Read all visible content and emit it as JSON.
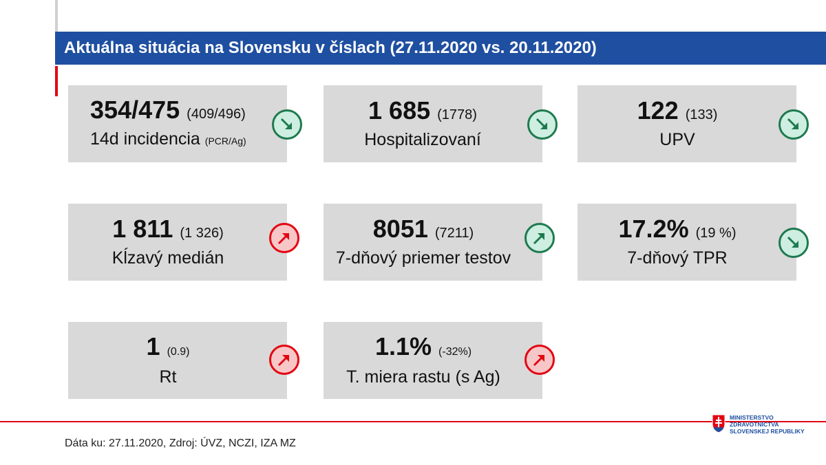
{
  "title": "Aktuálna situácia na Slovensku v číslach (27.11.2020 vs. 20.11.2020)",
  "cards": [
    {
      "value": "354/475",
      "prev": "(409/496)",
      "label": "14d incidencia",
      "label_sub": "(PCR/Ag)",
      "trend": "down",
      "trend_icon": "arrow-down-right-icon",
      "trend_color": "#1e7a4f"
    },
    {
      "value": "1 685",
      "prev": "(1778)",
      "label": "Hospitalizovaní",
      "label_sub": "",
      "trend": "down",
      "trend_icon": "arrow-down-right-icon",
      "trend_color": "#1e7a4f"
    },
    {
      "value": "122",
      "prev": "(133)",
      "label": "UPV",
      "label_sub": "",
      "trend": "down",
      "trend_icon": "arrow-down-right-icon",
      "trend_color": "#1e7a4f"
    },
    {
      "value": "1 811",
      "prev": "(1 326)",
      "label": "Kĺzavý medián",
      "label_sub": "",
      "trend": "up",
      "trend_icon": "arrow-up-right-icon",
      "trend_color": "#e30613"
    },
    {
      "value": "8051",
      "prev": "(7211)",
      "label": "7-dňový priemer testov",
      "label_sub": "",
      "trend": "up",
      "trend_icon": "arrow-up-right-icon",
      "trend_color": "#1e7a4f"
    },
    {
      "value": "17.2%",
      "prev": "(19 %)",
      "label": "7-dňový TPR",
      "label_sub": "",
      "trend": "down",
      "trend_icon": "arrow-down-right-icon",
      "trend_color": "#1e7a4f"
    },
    {
      "value": "1",
      "prev": "(0.9)",
      "label": "Rt",
      "label_sub": "",
      "trend": "up",
      "trend_icon": "arrow-up-right-icon",
      "trend_color": "#e30613"
    },
    {
      "value": "1.1%",
      "prev": "(-32%)",
      "label": "T. miera rastu (s Ag)",
      "label_sub": "",
      "trend": "up",
      "trend_icon": "arrow-up-right-icon",
      "trend_color": "#e30613"
    }
  ],
  "footer": "Dáta ku: 27.11.2020, Zdroj: ÚVZ, NCZI, IZA MZ",
  "logo": {
    "line1": "MINISTERSTVO",
    "line2": "ZDRAVOTNÍCTVA",
    "line3": "SLOVENSKEJ REPUBLIKY",
    "icon": "slovak-crest-icon"
  }
}
